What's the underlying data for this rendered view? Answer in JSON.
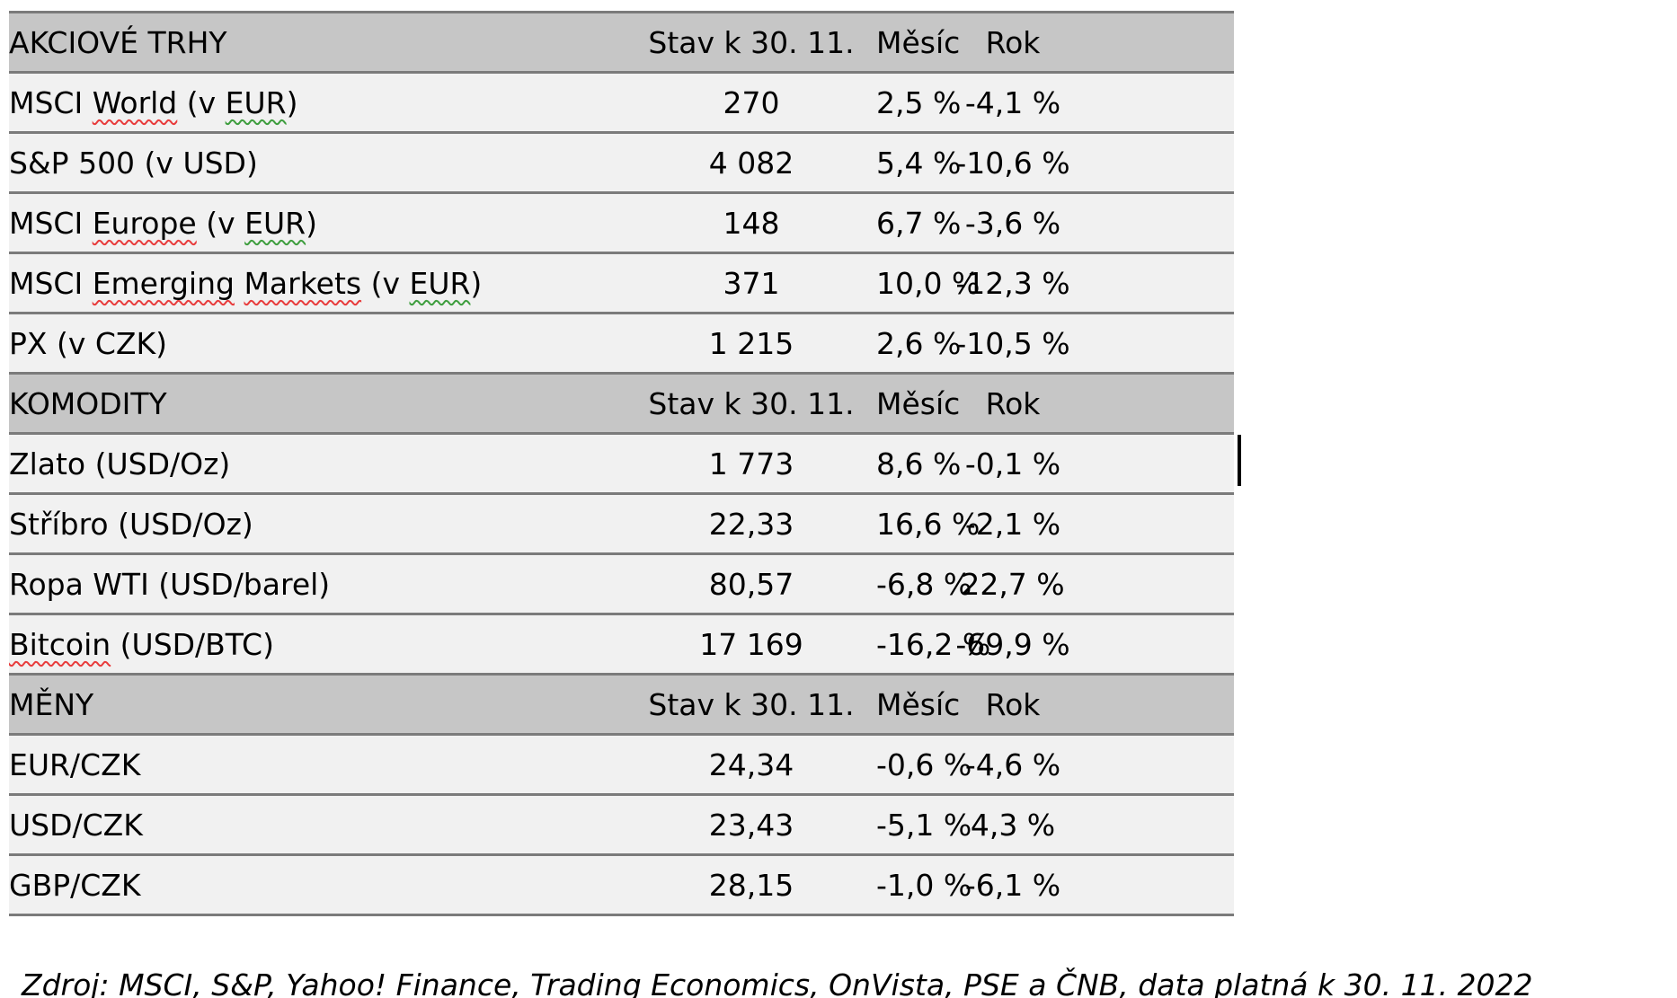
{
  "colors": {
    "section_header_bg": "#c6c6c6",
    "row_bg": "#f1f1f1",
    "border": "#7b7b7b",
    "text": "#000000",
    "spellcheck_red": "#e83c3c",
    "grammar_green": "#3f9e3f"
  },
  "table": {
    "value_headers": [
      "Stav k 30. 11.",
      "Měsíc",
      "Rok"
    ],
    "sections": [
      {
        "title": "AKCIOVÉ TRHY",
        "rows": [
          {
            "label": [
              {
                "t": "MSCI "
              },
              {
                "t": "World",
                "m": "red"
              },
              {
                "t": " (v "
              },
              {
                "t": "EUR",
                "m": "green"
              },
              {
                "t": ")"
              }
            ],
            "value": "270",
            "month": "2,5 %",
            "year": "-4,1 %"
          },
          {
            "label": [
              {
                "t": "S&P 500 (v USD)"
              }
            ],
            "value": "4 082",
            "month": "5,4 %",
            "year": "-10,6 %"
          },
          {
            "label": [
              {
                "t": "MSCI "
              },
              {
                "t": "Europe",
                "m": "red"
              },
              {
                "t": " (v "
              },
              {
                "t": "EUR",
                "m": "green"
              },
              {
                "t": ")"
              }
            ],
            "value": "148",
            "month": "6,7 %",
            "year": "-3,6 %"
          },
          {
            "label": [
              {
                "t": "MSCI "
              },
              {
                "t": "Emerging",
                "m": "red"
              },
              {
                "t": " "
              },
              {
                "t": "Markets",
                "m": "red"
              },
              {
                "t": " (v "
              },
              {
                "t": "EUR",
                "m": "green"
              },
              {
                "t": ")"
              }
            ],
            "value": "371",
            "month": "10,0 %",
            "year": "-12,3 %"
          },
          {
            "label": [
              {
                "t": "PX (v CZK)"
              }
            ],
            "value": "1 215",
            "month": "2,6 %",
            "year": "-10,5 %"
          }
        ]
      },
      {
        "title": "KOMODITY",
        "rows": [
          {
            "label": [
              {
                "t": "Zlato (USD/Oz)"
              }
            ],
            "value": "1 773",
            "month": "8,6 %",
            "year": "-0,1 %"
          },
          {
            "label": [
              {
                "t": "Stříbro (USD/Oz)"
              }
            ],
            "value": "22,33",
            "month": "16,6 %",
            "year": "-2,1 %"
          },
          {
            "label": [
              {
                "t": "Ropa WTI (USD/barel)"
              }
            ],
            "value": "80,57",
            "month": "-6,8 %",
            "year": "22,7 %"
          },
          {
            "label": [
              {
                "t": "Bitcoin",
                "m": "red"
              },
              {
                "t": " (USD/BTC)"
              }
            ],
            "value": "17 169",
            "month": "-16,2 %",
            "year": "-69,9 %"
          }
        ]
      },
      {
        "title": "MĚNY",
        "rows": [
          {
            "label": [
              {
                "t": "EUR/CZK"
              }
            ],
            "value": "24,34",
            "month": "-0,6 %",
            "year": "-4,6 %"
          },
          {
            "label": [
              {
                "t": "USD/CZK"
              }
            ],
            "value": "23,43",
            "month": "-5,1 %",
            "year": "4,3 %"
          },
          {
            "label": [
              {
                "t": "GBP/CZK"
              }
            ],
            "value": "28,15",
            "month": "-1,0 %",
            "year": "-6,1 %"
          }
        ]
      }
    ]
  },
  "footer": {
    "segments": [
      {
        "t": "Zdroj: MSCI, S&P, Yahoo! Finance, "
      },
      {
        "t": "Trading Economics",
        "m": "red"
      },
      {
        "t": ", "
      },
      {
        "t": "OnVista",
        "m": "red"
      },
      {
        "t": ", PSE a ČNB, data platná k 30. 11. 2022"
      }
    ]
  }
}
